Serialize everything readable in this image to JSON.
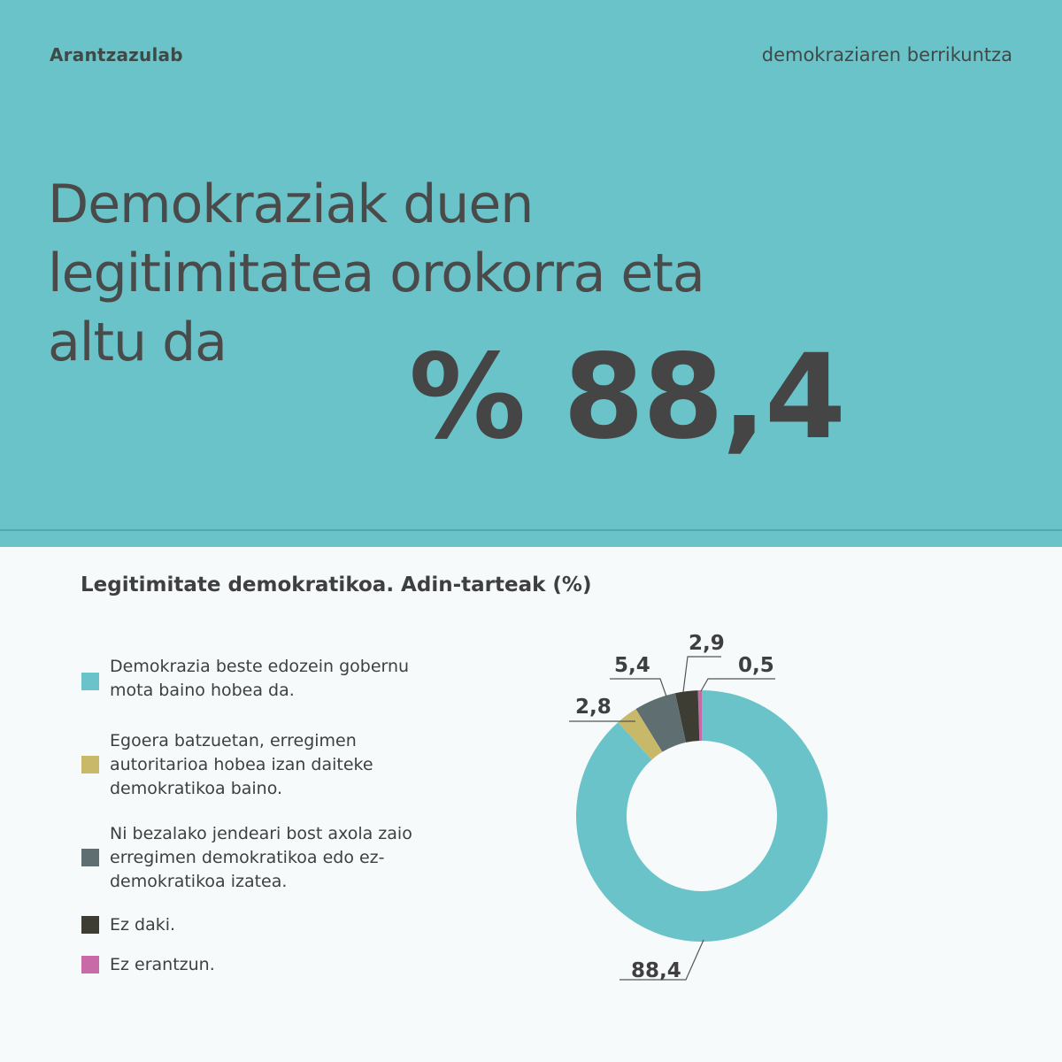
{
  "header": {
    "brand": "Arantzazulab",
    "tagline": "demokraziaren berrikuntza"
  },
  "hero": {
    "headline_lines": [
      "Demokraziak duen",
      "legitimitatea orokorra eta",
      "altu da"
    ],
    "big_stat": "% 88,4"
  },
  "colors": {
    "accent": "#69c3c8",
    "text": "#4a4a4a"
  },
  "chart_data": {
    "type": "pie",
    "title": "Legitimitate demokratikoa. Adin-tarteak (%)",
    "donut": true,
    "legend_position": "left",
    "series": [
      {
        "name": "Demokrazia beste edozein gobernu mota baino hobea da.",
        "value": 88.4,
        "label": "88,4",
        "color": "#69c3c8"
      },
      {
        "name": "Egoera batzuetan, erregimen autoritarioa hobea izan daiteke demokratikoa baino.",
        "value": 2.8,
        "label": "2,8",
        "color": "#c8b96a"
      },
      {
        "name": "Ni bezalako jendeari  bost axola zaio erregimen demokratikoa edo ez-demokratikoa izatea.",
        "value": 5.4,
        "label": "5,4",
        "color": "#5f6e70"
      },
      {
        "name": "Ez daki.",
        "value": 2.9,
        "label": "2,9",
        "color": "#3e3d33"
      },
      {
        "name": "Ez erantzun.",
        "value": 0.5,
        "label": "0,5",
        "color": "#c86aa8"
      }
    ]
  }
}
